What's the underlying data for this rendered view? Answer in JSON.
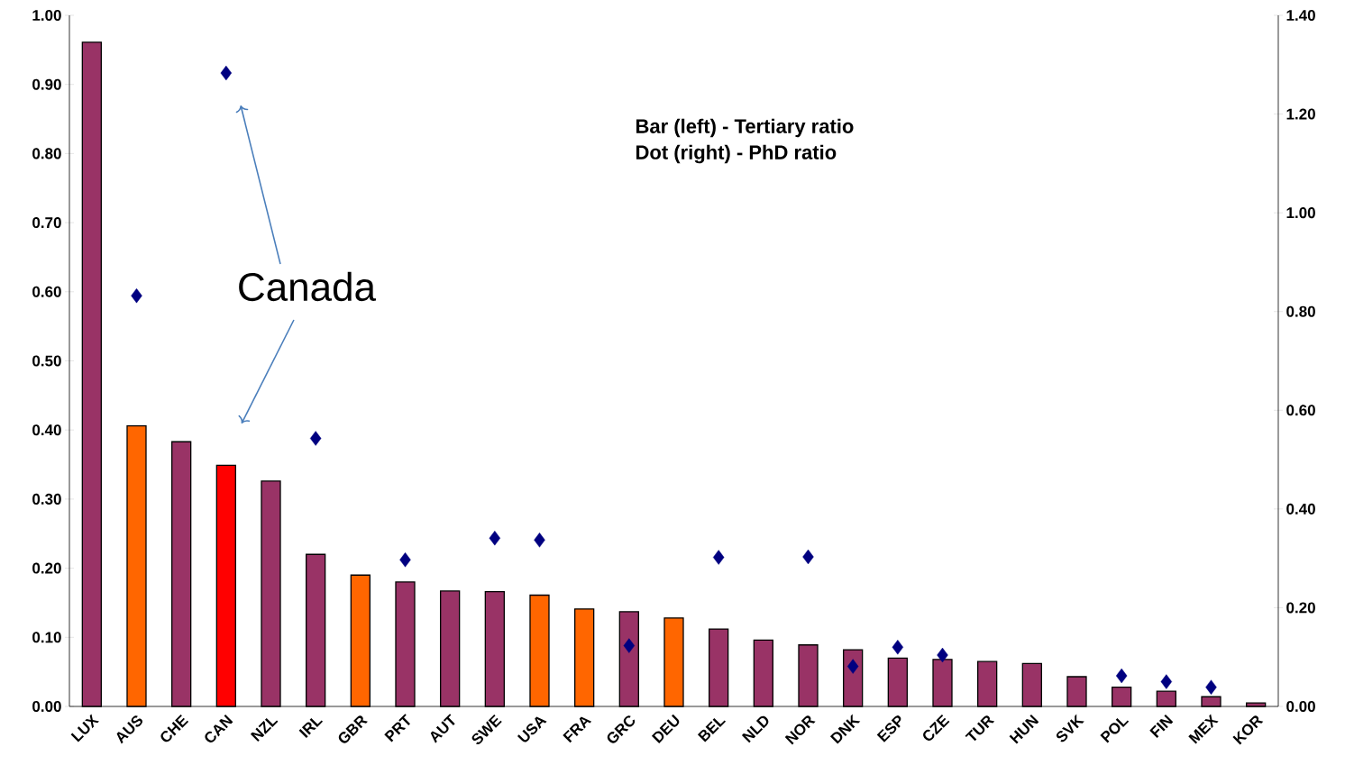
{
  "chart_data": {
    "type": "bar",
    "categories": [
      "LUX",
      "AUS",
      "CHE",
      "CAN",
      "NZL",
      "IRL",
      "GBR",
      "PRT",
      "AUT",
      "SWE",
      "USA",
      "FRA",
      "GRC",
      "DEU",
      "BEL",
      "NLD",
      "NOR",
      "DNK",
      "ESP",
      "CZE",
      "TUR",
      "HUN",
      "SVK",
      "POL",
      "FIN",
      "MEX",
      "KOR"
    ],
    "series": [
      {
        "values": [
          0.961,
          0.406,
          0.383,
          0.349,
          0.326,
          0.22,
          0.19,
          0.18,
          0.167,
          0.166,
          0.161,
          0.141,
          0.137,
          0.128,
          0.112,
          0.096,
          0.089,
          0.082,
          0.07,
          0.068,
          0.065,
          0.062,
          0.043,
          0.028,
          0.022,
          0.014,
          0.005
        ],
        "colors": [
          "#993366",
          "#ff6600",
          "#993366",
          "#ff0000",
          "#993366",
          "#993366",
          "#ff6600",
          "#993366",
          "#993366",
          "#993366",
          "#ff6600",
          "#ff6600",
          "#993366",
          "#ff6600",
          "#993366",
          "#993366",
          "#993366",
          "#993366",
          "#993366",
          "#993366",
          "#993366",
          "#993366",
          "#993366",
          "#993366",
          "#993366",
          "#993366",
          "#993366"
        ]
      },
      {
        "type": "scatter",
        "axis": "y2",
        "marker": "diamond",
        "color": "#000080",
        "values": [
          null,
          0.832,
          null,
          1.283,
          null,
          0.543,
          null,
          0.297,
          null,
          0.341,
          0.337,
          null,
          0.123,
          null,
          0.302,
          null,
          0.303,
          0.081,
          0.12,
          0.104,
          null,
          null,
          null,
          0.062,
          0.05,
          0.039,
          null
        ]
      }
    ],
    "ylim": [
      0,
      1.0
    ],
    "yticks": [
      {
        "value": 0,
        "label": "0.00"
      },
      {
        "value": 0.1,
        "label": "0.10"
      },
      {
        "value": 0.2,
        "label": "0.20"
      },
      {
        "value": 0.3,
        "label": "0.30"
      },
      {
        "value": 0.4,
        "label": "0.40"
      },
      {
        "value": 0.5,
        "label": "0.50"
      },
      {
        "value": 0.6,
        "label": "0.60"
      },
      {
        "value": 0.7,
        "label": "0.70"
      },
      {
        "value": 0.8,
        "label": "0.80"
      },
      {
        "value": 0.9,
        "label": "0.90"
      },
      {
        "value": 1.0,
        "label": "1.00"
      }
    ],
    "y2lim": [
      0,
      1.4
    ],
    "y2ticks": [
      {
        "value": 0,
        "label": "0.00"
      },
      {
        "value": 0.2,
        "label": "0.20"
      },
      {
        "value": 0.4,
        "label": "0.40"
      },
      {
        "value": 0.6,
        "label": "0.60"
      },
      {
        "value": 0.8,
        "label": "0.80"
      },
      {
        "value": 1.0,
        "label": "1.00"
      },
      {
        "value": 1.2,
        "label": "1.20"
      },
      {
        "value": 1.4,
        "label": "1.40"
      }
    ],
    "annotations": [
      "Bar (left) - Tertiary ratio",
      "Dot (right) - PhD ratio",
      "Canada"
    ],
    "tick_labels": "xy"
  }
}
